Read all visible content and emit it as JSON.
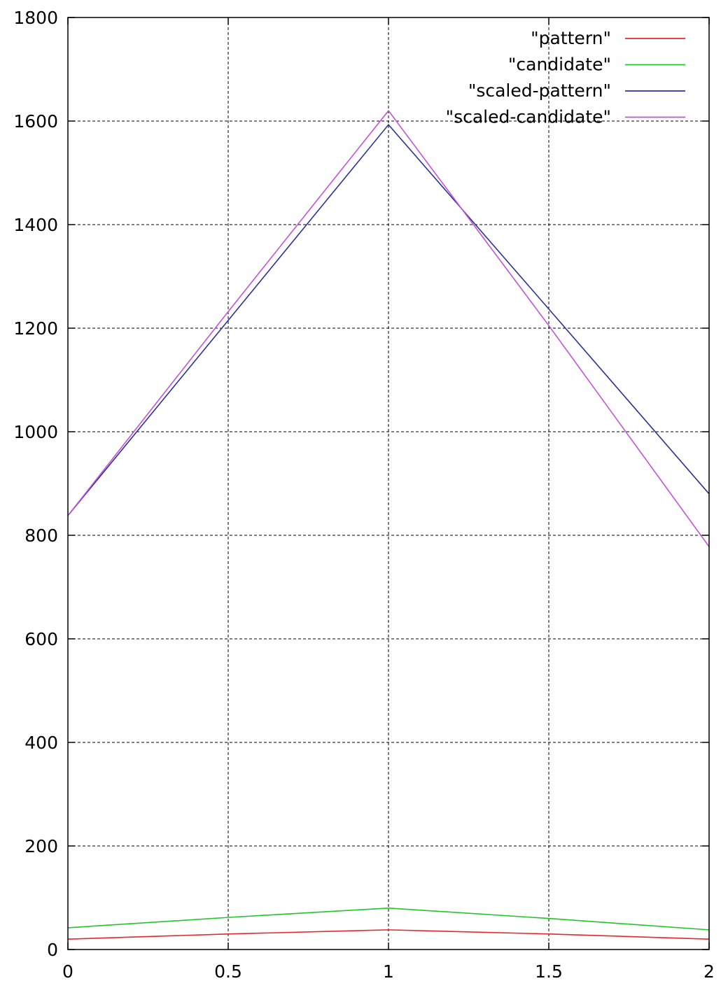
{
  "chart_data": {
    "type": "line",
    "title": "",
    "xlabel": "",
    "ylabel": "",
    "xlim": [
      0,
      2
    ],
    "ylim": [
      0,
      1800
    ],
    "xticks": [
      0,
      0.5,
      1,
      1.5,
      2
    ],
    "xtick_labels": [
      "0",
      "0.5",
      "1",
      "1.5",
      "2"
    ],
    "yticks": [
      0,
      200,
      400,
      600,
      800,
      1000,
      1200,
      1400,
      1600,
      1800
    ],
    "ytick_labels": [
      "0",
      "200",
      "400",
      "600",
      "800",
      "1000",
      "1200",
      "1400",
      "1600",
      "1800"
    ],
    "grid": true,
    "legend_position": "top-right",
    "x": [
      0,
      0.5,
      1,
      1.5,
      2
    ],
    "series": [
      {
        "name": "\"pattern\"",
        "color": "#e8262a",
        "values": [
          20,
          30,
          38,
          30,
          20
        ]
      },
      {
        "name": "\"candidate\"",
        "color": "#22c52a",
        "values": [
          42,
          62,
          80,
          60,
          38
        ]
      },
      {
        "name": "\"scaled-pattern\"",
        "color": "#2b3296",
        "values": [
          838,
          1215,
          1593,
          1237,
          880
        ]
      },
      {
        "name": "\"scaled-candidate\"",
        "color": "#c352d9",
        "values": [
          838,
          1232,
          1620,
          1205,
          778
        ]
      }
    ]
  }
}
